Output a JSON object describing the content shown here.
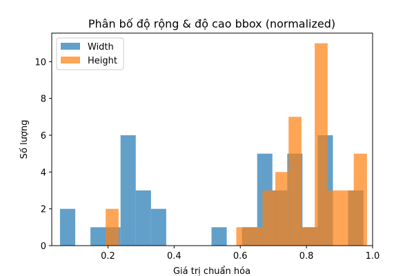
{
  "chart_data": {
    "type": "histogram",
    "title": "Phân bố độ rộng & độ cao bbox (normalized)",
    "xlabel": "Giá trị chuẩn hóa",
    "ylabel": "Số lượng",
    "xlim": [
      0.03,
      1.0
    ],
    "ylim": [
      0,
      11.55
    ],
    "xticks": [
      0.2,
      0.4,
      0.6,
      0.8,
      1.0
    ],
    "xtick_labels": [
      "0.2",
      "0.4",
      "0.6",
      "0.8",
      "1.0"
    ],
    "yticks": [
      0,
      2,
      4,
      6,
      8,
      10
    ],
    "ytick_labels": [
      "0",
      "2",
      "4",
      "6",
      "8",
      "10"
    ],
    "alpha": 0.7,
    "legend_position": "upper-left",
    "series": [
      {
        "name": "Width",
        "color": "#1f77b4",
        "bins": [
          {
            "x0": 0.055,
            "x1": 0.101,
            "count": 2
          },
          {
            "x0": 0.101,
            "x1": 0.147,
            "count": 0
          },
          {
            "x0": 0.147,
            "x1": 0.193,
            "count": 1
          },
          {
            "x0": 0.193,
            "x1": 0.238,
            "count": 1
          },
          {
            "x0": 0.238,
            "x1": 0.284,
            "count": 6
          },
          {
            "x0": 0.284,
            "x1": 0.33,
            "count": 3
          },
          {
            "x0": 0.33,
            "x1": 0.376,
            "count": 2
          },
          {
            "x0": 0.376,
            "x1": 0.422,
            "count": 0
          },
          {
            "x0": 0.422,
            "x1": 0.467,
            "count": 0
          },
          {
            "x0": 0.467,
            "x1": 0.513,
            "count": 0
          },
          {
            "x0": 0.513,
            "x1": 0.559,
            "count": 1
          },
          {
            "x0": 0.559,
            "x1": 0.605,
            "count": 0
          },
          {
            "x0": 0.605,
            "x1": 0.651,
            "count": 1
          },
          {
            "x0": 0.651,
            "x1": 0.697,
            "count": 5
          },
          {
            "x0": 0.697,
            "x1": 0.742,
            "count": 3
          },
          {
            "x0": 0.742,
            "x1": 0.788,
            "count": 5
          },
          {
            "x0": 0.788,
            "x1": 0.834,
            "count": 1
          },
          {
            "x0": 0.834,
            "x1": 0.88,
            "count": 6
          },
          {
            "x0": 0.88,
            "x1": 0.926,
            "count": 0
          },
          {
            "x0": 0.926,
            "x1": 0.972,
            "count": 3
          }
        ]
      },
      {
        "name": "Height",
        "color": "#ff7f0e",
        "bins": [
          {
            "x0": 0.193,
            "x1": 0.232,
            "count": 2
          },
          {
            "x0": 0.232,
            "x1": 0.272,
            "count": 0
          },
          {
            "x0": 0.272,
            "x1": 0.311,
            "count": 0
          },
          {
            "x0": 0.311,
            "x1": 0.351,
            "count": 0
          },
          {
            "x0": 0.351,
            "x1": 0.39,
            "count": 0
          },
          {
            "x0": 0.39,
            "x1": 0.43,
            "count": 0
          },
          {
            "x0": 0.43,
            "x1": 0.469,
            "count": 0
          },
          {
            "x0": 0.469,
            "x1": 0.509,
            "count": 0
          },
          {
            "x0": 0.509,
            "x1": 0.548,
            "count": 0
          },
          {
            "x0": 0.548,
            "x1": 0.588,
            "count": 0
          },
          {
            "x0": 0.588,
            "x1": 0.627,
            "count": 1
          },
          {
            "x0": 0.627,
            "x1": 0.667,
            "count": 1
          },
          {
            "x0": 0.667,
            "x1": 0.706,
            "count": 3
          },
          {
            "x0": 0.706,
            "x1": 0.746,
            "count": 4
          },
          {
            "x0": 0.746,
            "x1": 0.785,
            "count": 7
          },
          {
            "x0": 0.785,
            "x1": 0.825,
            "count": 1
          },
          {
            "x0": 0.825,
            "x1": 0.864,
            "count": 11
          },
          {
            "x0": 0.864,
            "x1": 0.904,
            "count": 3
          },
          {
            "x0": 0.904,
            "x1": 0.943,
            "count": 3
          },
          {
            "x0": 0.943,
            "x1": 0.983,
            "count": 5
          }
        ]
      }
    ]
  }
}
